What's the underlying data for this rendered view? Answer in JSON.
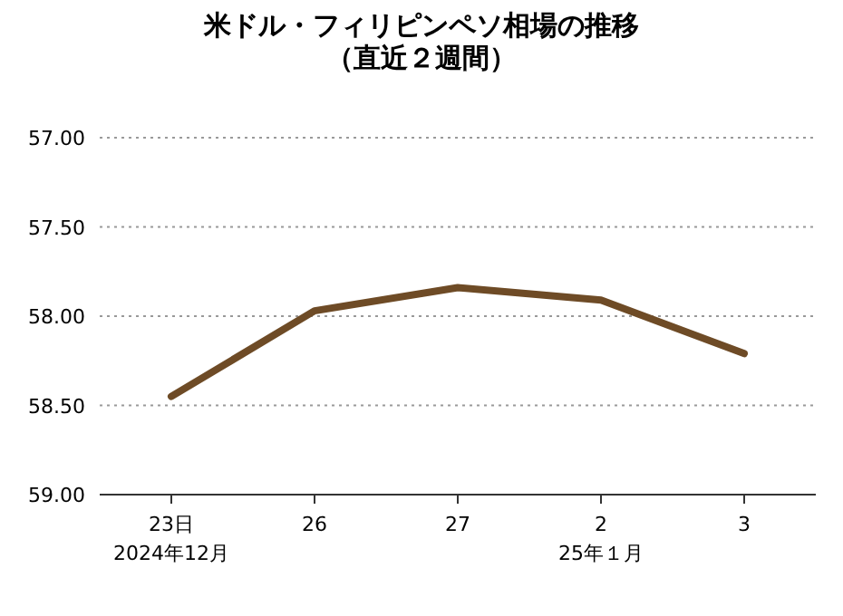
{
  "chart_data": {
    "type": "line",
    "title": "米ドル・フィリピンペソ相場の推移",
    "subtitle": "（直近２週間）",
    "categories": [
      "23日",
      "26",
      "27",
      "2",
      "3"
    ],
    "values": [
      58.45,
      57.97,
      57.84,
      57.91,
      58.21
    ],
    "color": "#6e4b26",
    "ylim": [
      59,
      57
    ],
    "yticks": [
      {
        "value": 57,
        "label": "57.00"
      },
      {
        "value": 57.5,
        "label": "57.50"
      },
      {
        "value": 58,
        "label": "58.00"
      },
      {
        "value": 58.5,
        "label": "58.50"
      },
      {
        "value": 59,
        "label": "59.00"
      }
    ],
    "grid": "y",
    "marker": "none",
    "line_style": "solid",
    "annotations": [
      "2024年12月",
      "25年１月"
    ]
  }
}
